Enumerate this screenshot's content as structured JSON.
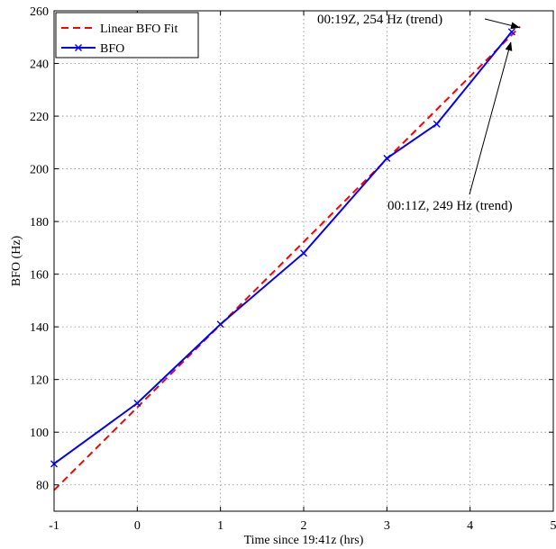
{
  "chart_data": {
    "type": "line",
    "xlabel": "Time since 19:41z (hrs)",
    "ylabel": "BFO (Hz)",
    "xlim": [
      -1,
      5
    ],
    "ylim": [
      70,
      260
    ],
    "x_ticks": [
      -1,
      0,
      1,
      2,
      3,
      4,
      5
    ],
    "x_tick_labels": [
      "-1",
      "0",
      "1",
      "2",
      "3",
      "4",
      "5"
    ],
    "y_ticks": [
      80,
      100,
      120,
      140,
      160,
      180,
      200,
      220,
      240,
      260
    ],
    "y_tick_labels": [
      "80",
      "100",
      "120",
      "140",
      "160",
      "180",
      "200",
      "220",
      "240",
      "260"
    ],
    "grid": true,
    "legend_placement": "top-left",
    "series": [
      {
        "name": "Linear BFO Fit",
        "color": "#ff0000",
        "style": "dashed",
        "x": [
          -1,
          4.6
        ],
        "y": [
          78,
          254
        ]
      },
      {
        "name": "BFO",
        "color": "#0000ff",
        "style": "solid",
        "marker": "x",
        "x": [
          -1,
          0,
          1,
          2,
          3,
          3.6,
          4.5
        ],
        "y": [
          88,
          111,
          141,
          168,
          204,
          217,
          252
        ]
      }
    ],
    "annotations": [
      {
        "text": "00:19Z, 254 Hz (trend)",
        "x": 4.6,
        "y": 254
      },
      {
        "text": "00:11Z, 249 Hz (trend)",
        "x": 4.5,
        "y": 249
      }
    ]
  }
}
